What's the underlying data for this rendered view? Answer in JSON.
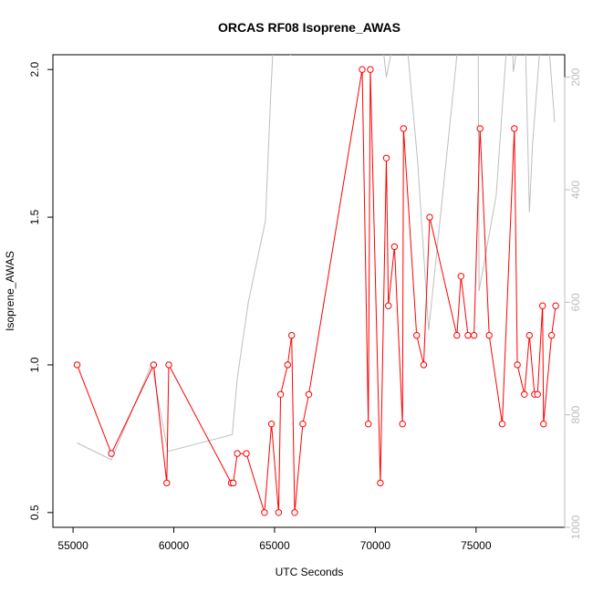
{
  "chart_data": {
    "type": "line",
    "title": "ORCAS RF08 Isoprene_AWAS",
    "xlabel": "UTC Seconds",
    "ylabel": "Isoprene_AWAS",
    "xlim": [
      54000,
      79400
    ],
    "ylim": [
      0.45,
      2.05
    ],
    "xticks": [
      55000,
      60000,
      65000,
      70000,
      75000
    ],
    "yticks": [
      0.5,
      1.0,
      1.5,
      2.0
    ],
    "y2lim": [
      1000,
      160
    ],
    "y2ticks": [
      200,
      400,
      600,
      800,
      1000
    ],
    "colors": {
      "primary": "#ff0000",
      "secondary": "#bebebe"
    },
    "series": [
      {
        "x": [
          55200,
          56900,
          59000,
          59650,
          59750,
          62850,
          62950,
          63150,
          63600,
          64500,
          64850,
          65200,
          65300,
          65650,
          65850,
          66000,
          66400,
          66700,
          69350,
          69650,
          69750,
          70250,
          70550,
          70650,
          70950,
          71350,
          71400,
          72050,
          72400,
          72700,
          74050,
          74250,
          74600,
          74900,
          75200,
          75650,
          76300,
          76900,
          77050,
          77400,
          77650,
          77900,
          78050,
          78300,
          78350,
          78750,
          78950
        ],
        "values": [
          1.0,
          0.7,
          1.0,
          0.6,
          1.0,
          0.6,
          0.6,
          0.7,
          0.7,
          0.5,
          0.8,
          0.5,
          0.9,
          1.0,
          1.1,
          0.5,
          0.8,
          0.9,
          2.0,
          0.8,
          2.0,
          0.6,
          1.7,
          1.2,
          1.4,
          0.8,
          1.8,
          1.1,
          1.0,
          1.5,
          1.1,
          1.3,
          1.1,
          1.1,
          1.8,
          1.1,
          0.8,
          1.8,
          1.0,
          0.9,
          1.1,
          0.9,
          0.9,
          1.2,
          0.8,
          1.1,
          1.2
        ]
      },
      {
        "x": [
          55200,
          56900,
          58900,
          59700,
          62900,
          63150,
          63700,
          64550,
          64800,
          64950,
          65800,
          66450,
          69300,
          70300,
          70550,
          71200,
          71450,
          72100,
          72650,
          74000,
          74150,
          74600,
          75100,
          75150,
          76000,
          76700,
          76850,
          77400,
          77650,
          77800,
          78400,
          78900
        ],
        "values": [
          850,
          880,
          710,
          865,
          835,
          735,
          600,
          455,
          240,
          130,
          160,
          120,
          100,
          120,
          200,
          80,
          90,
          350,
          650,
          180,
          120,
          110,
          40,
          580,
          410,
          50,
          190,
          60,
          440,
          320,
          40,
          280
        ]
      }
    ]
  }
}
